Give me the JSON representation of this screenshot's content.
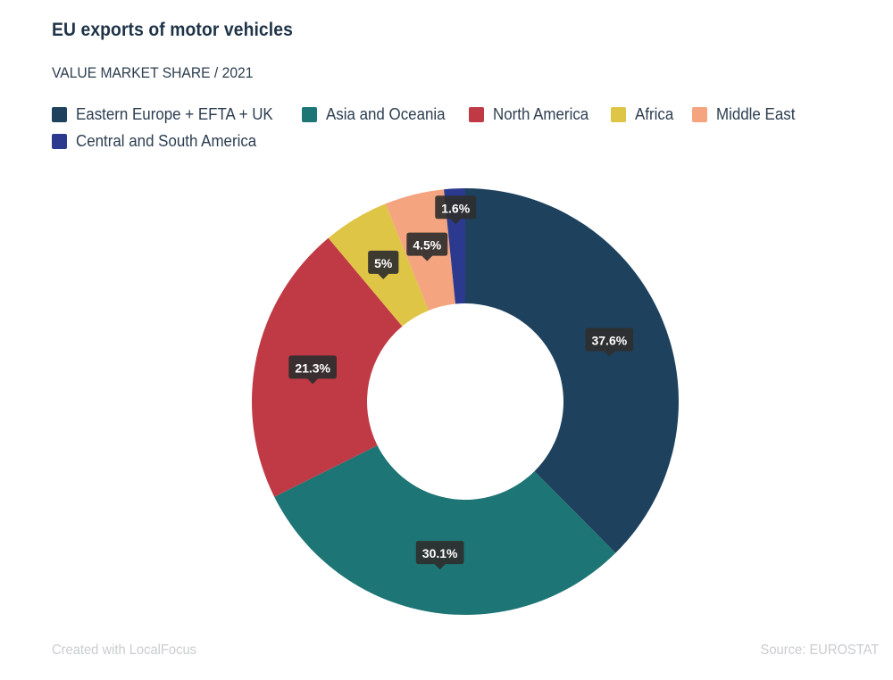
{
  "header": {
    "title": "EU exports of motor vehicles",
    "subtitle": "VALUE MARKET SHARE / 2021"
  },
  "footer": {
    "credit": "Created with LocalFocus",
    "source": "Source:  EUROSTAT"
  },
  "chart_data": {
    "type": "pie",
    "variant": "donut",
    "title": "EU exports of motor vehicles",
    "subtitle": "VALUE MARKET SHARE / 2021",
    "legend_position": "top",
    "slices": [
      {
        "name": "Eastern Europe + EFTA + UK",
        "value": 37.6,
        "label": "37.6%",
        "color": "#1e415d"
      },
      {
        "name": "Asia and Oceania",
        "value": 30.1,
        "label": "30.1%",
        "color": "#1e7575"
      },
      {
        "name": "North America",
        "value": 21.3,
        "label": "21.3%",
        "color": "#c03a45"
      },
      {
        "name": "Africa",
        "value": 5,
        "label": "5%",
        "color": "#dfc546"
      },
      {
        "name": "Middle East",
        "value": 4.5,
        "label": "4.5%",
        "color": "#f4a57f"
      },
      {
        "name": "Central and South America",
        "value": 1.6,
        "label": "1.6%",
        "color": "#2b3a8e"
      }
    ]
  }
}
